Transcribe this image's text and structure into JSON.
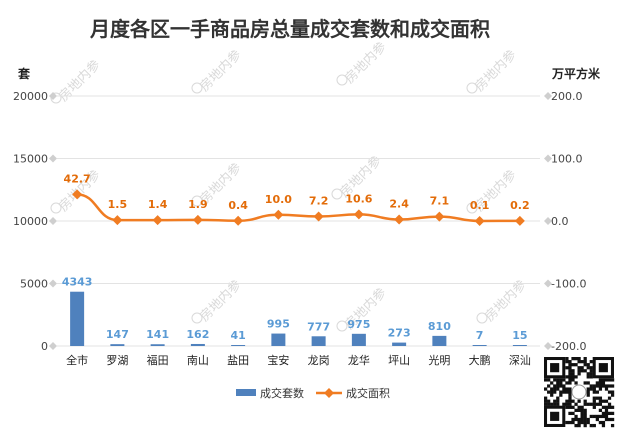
{
  "chart_data": {
    "type": "bar",
    "title": "月度各区一手商品房总量成交套数和成交面积",
    "ylabel_left": "套",
    "ylabel_right": "万平方米",
    "categories": [
      "全市",
      "罗湖",
      "福田",
      "南山",
      "盐田",
      "宝安",
      "龙岗",
      "龙华",
      "坪山",
      "光明",
      "大鹏",
      "深汕"
    ],
    "series": [
      {
        "name": "成交套数",
        "type": "bar",
        "axis": "left",
        "color": "#4f81bd",
        "values": [
          4343,
          147,
          141,
          162,
          41,
          995,
          777,
          975,
          273,
          810,
          7,
          15
        ],
        "labels": [
          "4343",
          "147",
          "141",
          "162",
          "41",
          "995",
          "777",
          "975",
          "273",
          "810",
          "7",
          "15"
        ]
      },
      {
        "name": "成交面积",
        "type": "line",
        "axis": "right",
        "color": "#f07c22",
        "values": [
          42.7,
          1.5,
          1.4,
          1.9,
          0.4,
          10.0,
          7.2,
          10.6,
          2.4,
          7.1,
          0.1,
          0.2
        ],
        "labels": [
          "42.7",
          "1.5",
          "1.4",
          "1.9",
          "0.4",
          "10.0",
          "7.2",
          "10.6",
          "2.4",
          "7.1",
          "0.1",
          "0.2"
        ]
      }
    ],
    "left_axis": {
      "ylim": [
        0,
        20000
      ],
      "ticks": [
        0,
        5000,
        10000,
        15000,
        20000
      ],
      "tick_labels": [
        "0",
        "5000",
        "10000",
        "15000",
        "20000"
      ]
    },
    "right_axis": {
      "ylim": [
        -200,
        200
      ],
      "ticks": [
        -200,
        -100,
        0,
        100,
        200
      ],
      "tick_labels": [
        "-200.0",
        "-100.0",
        "0.0",
        "100.0",
        "200.0"
      ]
    },
    "grid": true,
    "legend_position": "bottom"
  },
  "watermark": "房地内参",
  "legend": [
    {
      "label": "成交套数",
      "kind": "bar"
    },
    {
      "label": "成交面积",
      "kind": "line"
    }
  ]
}
